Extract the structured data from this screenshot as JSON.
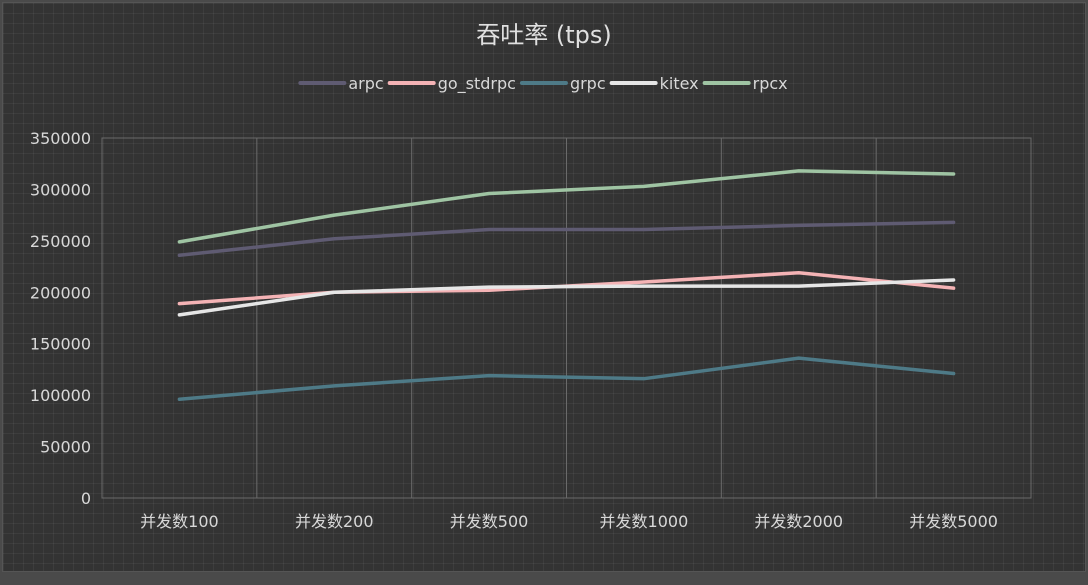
{
  "chart_data": {
    "type": "line",
    "title": "吞吐率 (tps)",
    "xlabel": "",
    "ylabel": "",
    "categories": [
      "并发数100",
      "并发数200",
      "并发数500",
      "并发数1000",
      "并发数2000",
      "并发数5000"
    ],
    "ylim": [
      0,
      350000
    ],
    "yticks": [
      "0",
      "50000",
      "100000",
      "150000",
      "200000",
      "250000",
      "300000",
      "350000"
    ],
    "legend_position": "top-center",
    "grid": true,
    "series": [
      {
        "name": "arpc",
        "color": "#5f5b72",
        "values": [
          236000,
          252000,
          261000,
          261000,
          265000,
          268000
        ]
      },
      {
        "name": "go_stdrpc",
        "color": "#f4b3b5",
        "values": [
          189000,
          200000,
          202000,
          210000,
          219000,
          204000
        ]
      },
      {
        "name": "grpc",
        "color": "#4e7a87",
        "values": [
          96000,
          109000,
          119000,
          116000,
          136000,
          121000
        ]
      },
      {
        "name": "kitex",
        "color": "#e6e6e6",
        "values": [
          178000,
          200000,
          205000,
          206000,
          206000,
          212000
        ]
      },
      {
        "name": "rpcx",
        "color": "#9fc4a3",
        "values": [
          249000,
          275000,
          296000,
          303000,
          318000,
          315000
        ]
      }
    ]
  }
}
